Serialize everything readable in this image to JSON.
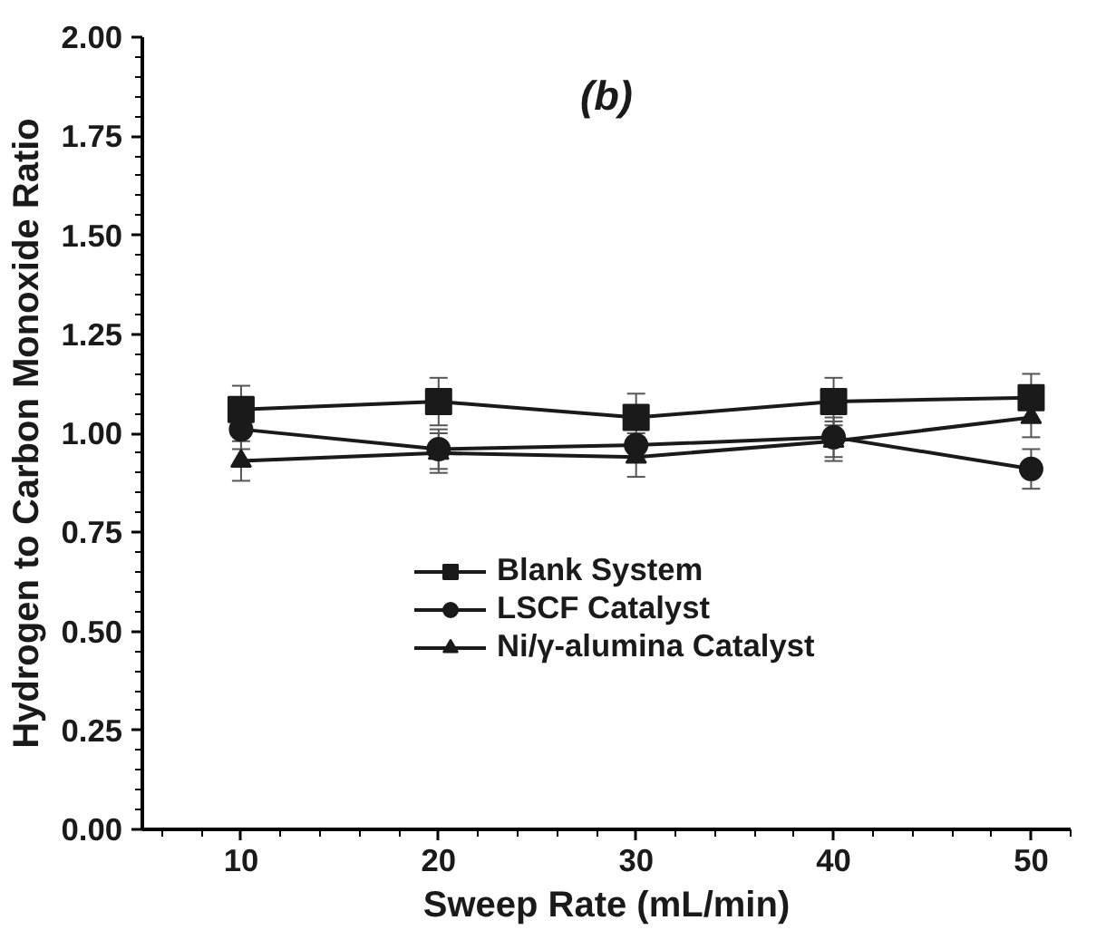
{
  "chart_data": {
    "type": "line",
    "title": "(b)",
    "xlabel": "Sweep Rate (mL/min)",
    "ylabel": "Hydrogen to Carbon Monoxide Ratio",
    "x": [
      10,
      20,
      30,
      40,
      50
    ],
    "series": [
      {
        "name": "Blank System",
        "color": "#1a1a1a",
        "marker": "square",
        "values": [
          1.06,
          1.08,
          1.04,
          1.08,
          1.09
        ],
        "errors": [
          0.06,
          0.06,
          0.06,
          0.06,
          0.06
        ]
      },
      {
        "name": "LSCF Catalyst",
        "color": "#1a1a1a",
        "marker": "circle",
        "values": [
          1.01,
          0.96,
          0.97,
          0.99,
          0.91
        ],
        "errors": [
          0.05,
          0.05,
          0.03,
          0.05,
          0.05
        ]
      },
      {
        "name": "Ni/γ-alumina Catalyst",
        "color": "#1a1a1a",
        "marker": "triangle",
        "values": [
          0.93,
          0.95,
          0.94,
          0.98,
          1.04
        ],
        "errors": [
          0.05,
          0.05,
          0.05,
          0.05,
          0.05
        ]
      }
    ],
    "xlim": [
      5,
      52
    ],
    "ylim": [
      0,
      2
    ],
    "xticks": [
      10,
      20,
      30,
      40,
      50
    ],
    "yticks": [
      {
        "value": 0,
        "label": "0.00"
      },
      {
        "value": 0.25,
        "label": "0.25"
      },
      {
        "value": 0.5,
        "label": "0.50"
      },
      {
        "value": 0.75,
        "label": "0.75"
      },
      {
        "value": 1,
        "label": "1.00"
      },
      {
        "value": 1.25,
        "label": "1.25"
      },
      {
        "value": 1.5,
        "label": "1.50"
      },
      {
        "value": 1.75,
        "label": "1.75"
      },
      {
        "value": 2,
        "label": "2.00"
      }
    ],
    "grid": false,
    "legend": "bottom",
    "line_style": "solid"
  }
}
